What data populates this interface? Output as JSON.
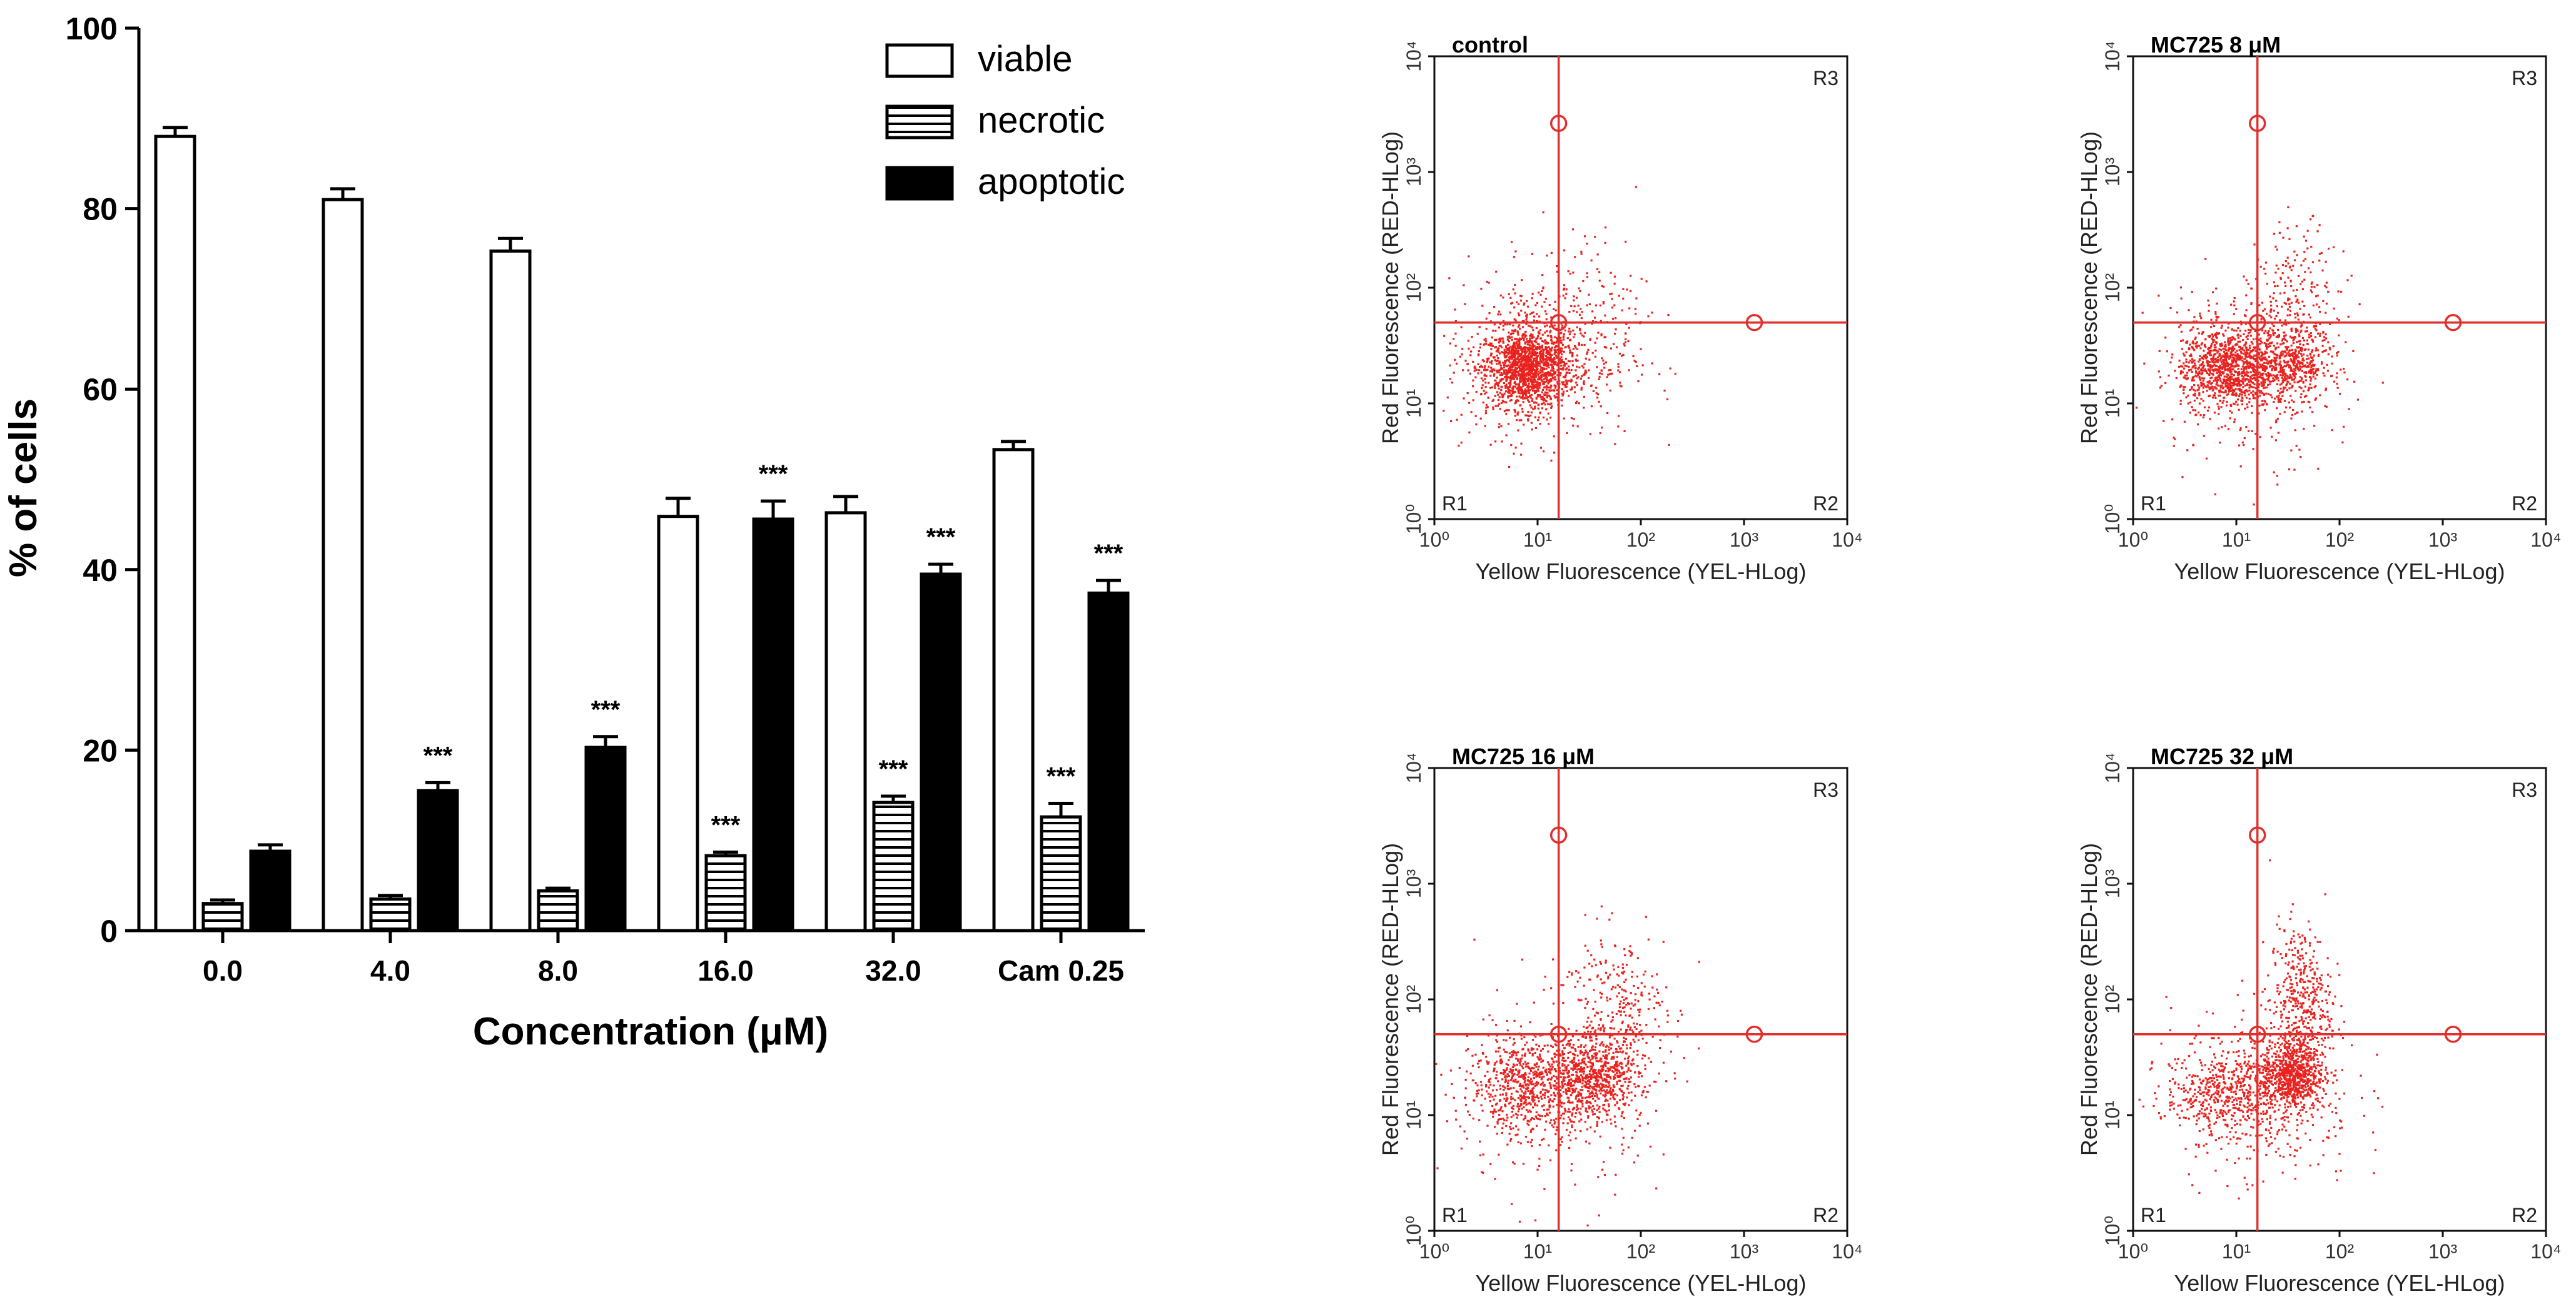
{
  "chart_data": [
    {
      "type": "bar",
      "title": "",
      "xlabel": "Concentration (μM)",
      "ylabel": "% of cells",
      "ylim": [
        0,
        100
      ],
      "yticks": [
        "0",
        "20",
        "40",
        "60",
        "80",
        "100"
      ],
      "categories": [
        "0.0",
        "4.0",
        "8.0",
        "16.0",
        "32.0",
        "Cam 0.25"
      ],
      "legend_position": "top-right",
      "series": [
        {
          "name": "viable",
          "fill": "white",
          "values": [
            88.0,
            81.0,
            75.3,
            45.9,
            46.3,
            53.3
          ],
          "errors": [
            1.0,
            1.2,
            1.4,
            2.0,
            1.8,
            0.9
          ],
          "significance": [
            "",
            "",
            "",
            "",
            "",
            ""
          ]
        },
        {
          "name": "necrotic",
          "fill": "hatched",
          "values": [
            3.0,
            3.5,
            4.4,
            8.3,
            14.2,
            12.6
          ],
          "errors": [
            0.4,
            0.4,
            0.3,
            0.4,
            0.7,
            1.5
          ],
          "significance": [
            "",
            "",
            "",
            "***",
            "***",
            "***"
          ]
        },
        {
          "name": "apoptotic",
          "fill": "black",
          "values": [
            8.8,
            15.5,
            20.3,
            45.6,
            39.5,
            37.4
          ],
          "errors": [
            0.7,
            0.9,
            1.2,
            2.0,
            1.1,
            1.4
          ],
          "significance": [
            "",
            "***",
            "***",
            "***",
            "***",
            "***"
          ]
        }
      ]
    },
    {
      "type": "scatter",
      "title": "control",
      "xlabel": "Yellow Fluorescence (YEL-HLog)",
      "ylabel": "Red Fluorescence (RED-HLog)",
      "xscale": "log",
      "yscale": "log",
      "xlim": [
        1,
        10000
      ],
      "ylim": [
        1,
        10000
      ],
      "gate_x": 16,
      "gate_y": 50,
      "regions": [
        "R1",
        "R2",
        "R3"
      ],
      "clusters": [
        {
          "x_center": 8,
          "y_center": 20,
          "x_spread": 0.2,
          "y_spread": 0.17,
          "count": 1300
        },
        {
          "x_center": 10,
          "y_center": 25,
          "x_spread": 0.45,
          "y_spread": 0.35,
          "count": 600
        },
        {
          "x_center": 30,
          "y_center": 60,
          "x_spread": 0.3,
          "y_spread": 0.4,
          "count": 120
        }
      ]
    },
    {
      "type": "scatter",
      "title": "MC725 8 μM",
      "xlabel": "Yellow Fluorescence (YEL-HLog)",
      "ylabel": "Red Fluorescence (RED-HLog)",
      "xscale": "log",
      "yscale": "log",
      "xlim": [
        1,
        10000
      ],
      "ylim": [
        1,
        10000
      ],
      "gate_x": 16,
      "gate_y": 50,
      "regions": [
        "R1",
        "R2",
        "R3"
      ],
      "clusters": [
        {
          "x_center": 8,
          "y_center": 20,
          "x_spread": 0.22,
          "y_spread": 0.17,
          "count": 900
        },
        {
          "x_center": 30,
          "y_center": 22,
          "x_spread": 0.22,
          "y_spread": 0.18,
          "count": 600
        },
        {
          "x_center": 40,
          "y_center": 90,
          "x_spread": 0.2,
          "y_spread": 0.3,
          "count": 180
        },
        {
          "x_center": 12,
          "y_center": 20,
          "x_spread": 0.45,
          "y_spread": 0.4,
          "count": 300
        }
      ]
    },
    {
      "type": "scatter",
      "title": "MC725 16 μM",
      "xlabel": "Yellow Fluorescence (YEL-HLog)",
      "ylabel": "Red Fluorescence (RED-HLog)",
      "xscale": "log",
      "yscale": "log",
      "xlim": [
        1,
        10000
      ],
      "ylim": [
        1,
        10000
      ],
      "gate_x": 16,
      "gate_y": 50,
      "regions": [
        "R1",
        "R2",
        "R3"
      ],
      "clusters": [
        {
          "x_center": 7,
          "y_center": 18,
          "x_spread": 0.25,
          "y_spread": 0.2,
          "count": 550
        },
        {
          "x_center": 35,
          "y_center": 20,
          "x_spread": 0.22,
          "y_spread": 0.18,
          "count": 700
        },
        {
          "x_center": 55,
          "y_center": 80,
          "x_spread": 0.25,
          "y_spread": 0.35,
          "count": 300
        },
        {
          "x_center": 15,
          "y_center": 15,
          "x_spread": 0.5,
          "y_spread": 0.45,
          "count": 300
        }
      ]
    },
    {
      "type": "scatter",
      "title": "MC725 32 μM",
      "xlabel": "Yellow Fluorescence (YEL-HLog)",
      "ylabel": "Red Fluorescence (RED-HLog)",
      "xscale": "log",
      "yscale": "log",
      "xlim": [
        1,
        10000
      ],
      "ylim": [
        1,
        10000
      ],
      "gate_x": 16,
      "gate_y": 50,
      "regions": [
        "R1",
        "R2",
        "R3"
      ],
      "clusters": [
        {
          "x_center": 8,
          "y_center": 16,
          "x_spread": 0.3,
          "y_spread": 0.18,
          "count": 500
        },
        {
          "x_center": 35,
          "y_center": 22,
          "x_spread": 0.15,
          "y_spread": 0.15,
          "count": 700
        },
        {
          "x_center": 42,
          "y_center": 90,
          "x_spread": 0.15,
          "y_spread": 0.35,
          "count": 450
        },
        {
          "x_center": 18,
          "y_center": 15,
          "x_spread": 0.45,
          "y_spread": 0.4,
          "count": 350
        }
      ]
    }
  ]
}
